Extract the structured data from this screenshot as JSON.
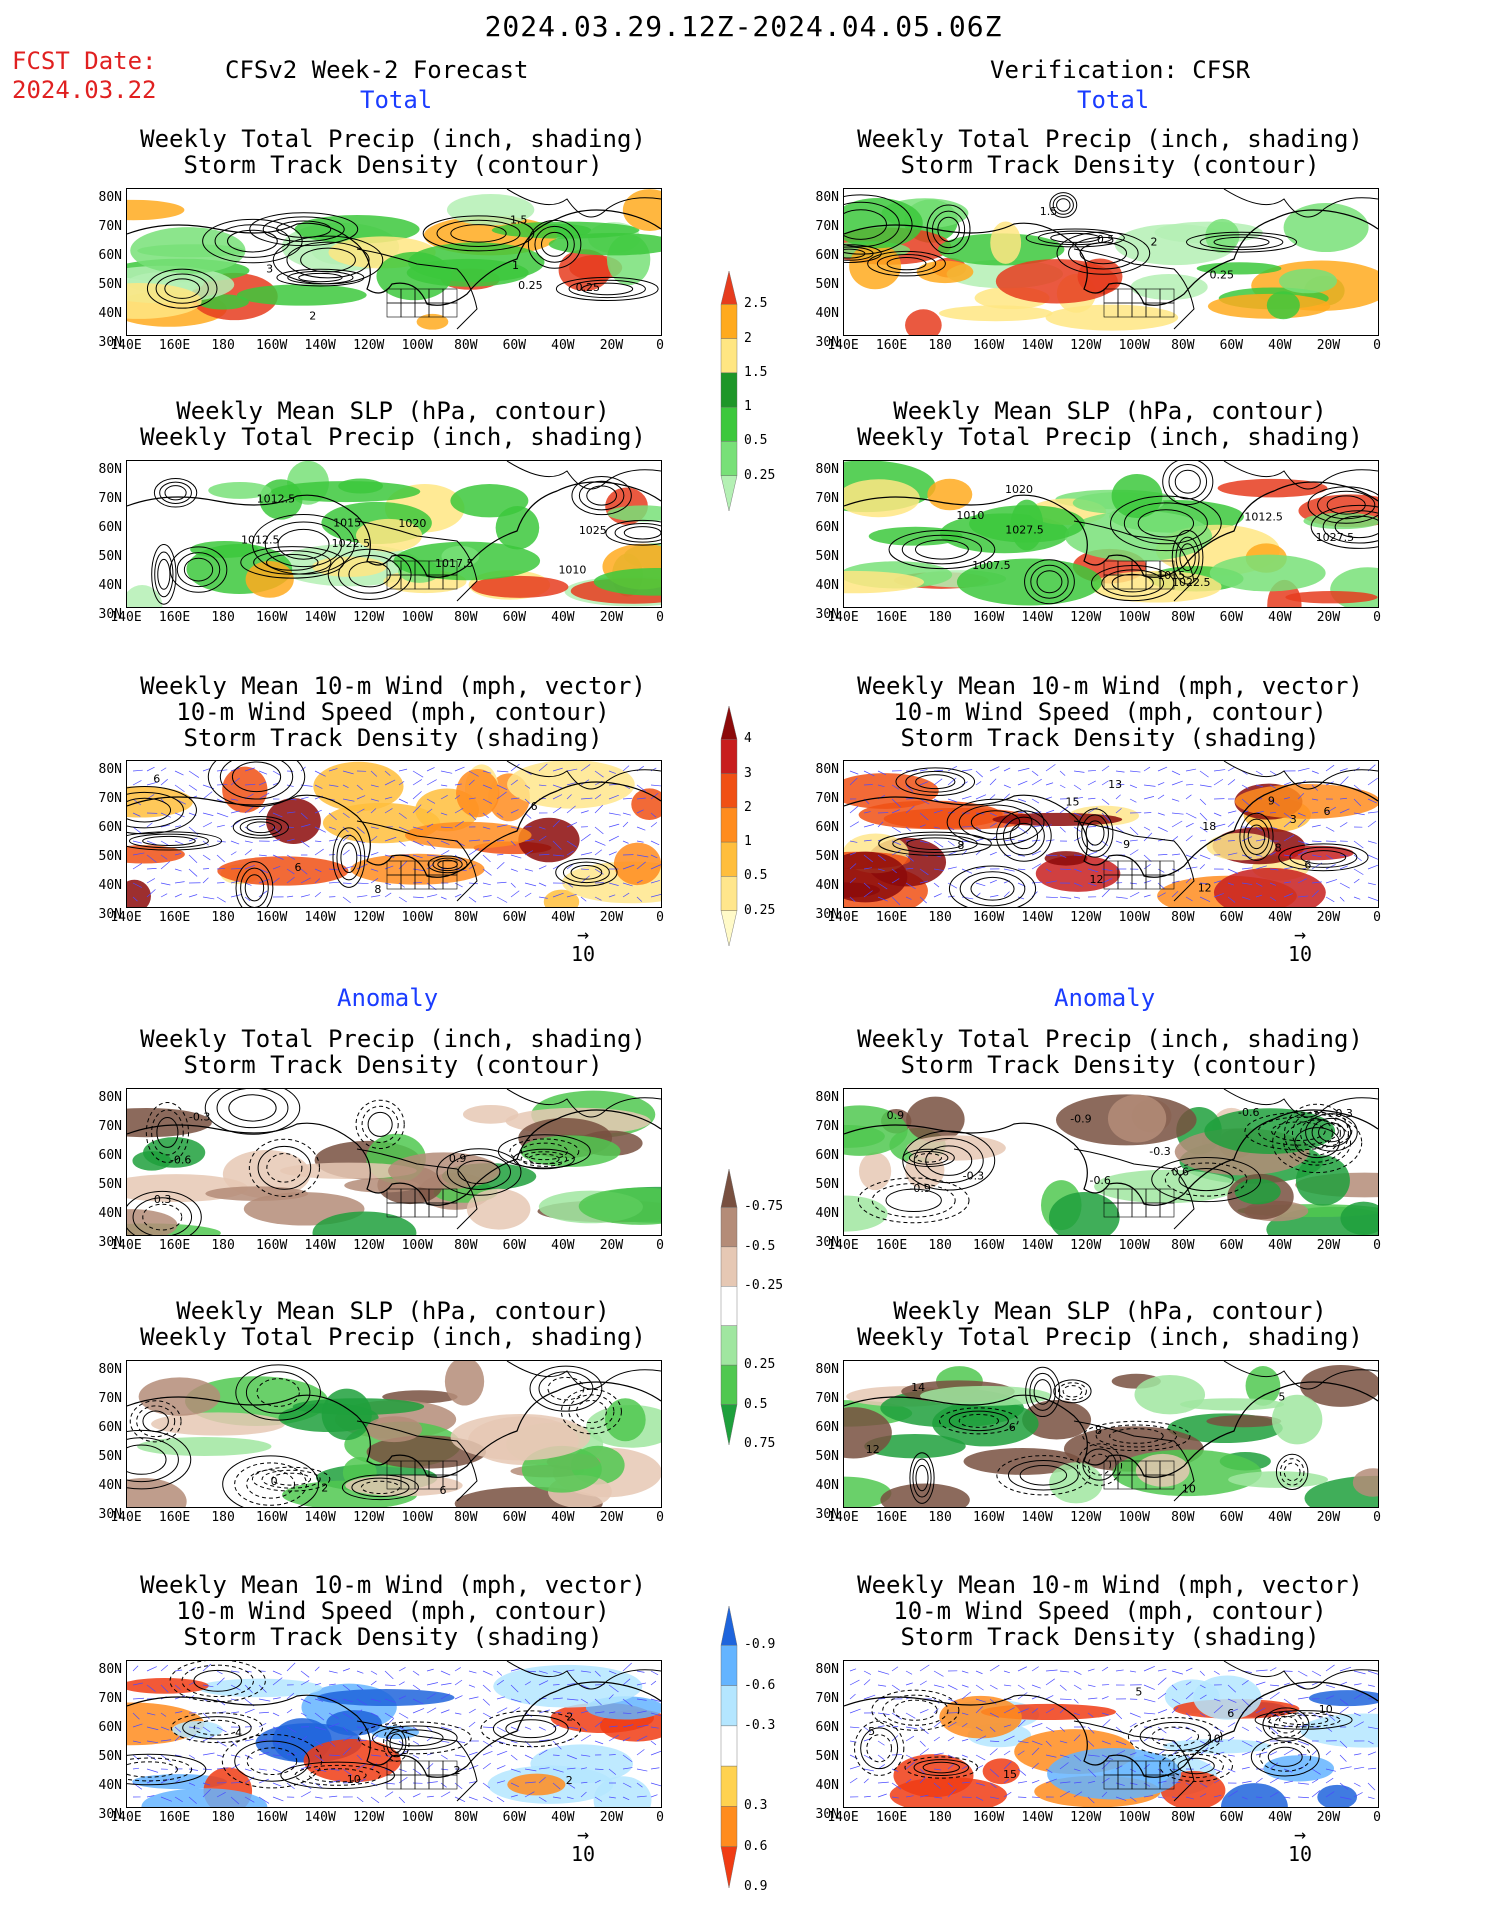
{
  "header": {
    "date_range": "2024.03.29.12Z-2024.04.05.06Z",
    "fcst_label": "FCST Date:",
    "fcst_date": "2024.03.22",
    "left_heading": "CFSv2 Week-2 Forecast",
    "right_heading": "Verification: CFSR",
    "total_label": "Total",
    "anomaly_label": "Anomaly"
  },
  "panel_titles": {
    "precip_storm": [
      "Weekly Total Precip (inch, shading)",
      "Storm Track Density (contour)"
    ],
    "slp_precip": [
      "Weekly Mean SLP (hPa, contour)",
      "Weekly Total Precip (inch, shading)"
    ],
    "wind_storm": [
      "Weekly Mean 10-m Wind (mph, vector)",
      "10-m Wind Speed (mph, contour)",
      "Storm Track Density (shading)"
    ]
  },
  "axes": {
    "lat_labels": [
      "80N",
      "70N",
      "60N",
      "50N",
      "40N",
      "30N"
    ],
    "lon_labels": [
      "140E",
      "160E",
      "180",
      "160W",
      "140W",
      "120W",
      "100W",
      "80W",
      "60W",
      "40W",
      "20W",
      "0"
    ]
  },
  "vector_ref": "10",
  "colorbars": {
    "total_precip": {
      "labels": [
        "0.25",
        "0.5",
        "1",
        "1.5",
        "2",
        "2.5"
      ],
      "colors": [
        "#b4f0b4",
        "#78e078",
        "#3cc83c",
        "#1e9628",
        "#ffe682",
        "#ffaa1e",
        "#e63c1e"
      ]
    },
    "total_storm": {
      "labels": [
        "0.25",
        "0.5",
        "1",
        "2",
        "3",
        "4"
      ],
      "colors": [
        "#fffac8",
        "#ffe68c",
        "#ffbe3c",
        "#ff8c1e",
        "#f05014",
        "#c81e1e",
        "#8c0a0a"
      ]
    },
    "anom_precip": {
      "labels": [
        "0.75",
        "0.5",
        "0.25",
        "-0.25",
        "-0.5",
        "-0.75"
      ],
      "colors": [
        "#1ea03c",
        "#50c850",
        "#a0e6a0",
        "#ffffff",
        "#e6c8b4",
        "#b48c78",
        "#785040"
      ]
    },
    "anom_storm": {
      "labels": [
        "0.9",
        "0.6",
        "0.3",
        "-0.3",
        "-0.6",
        "-0.9"
      ],
      "colors": [
        "#f03c14",
        "#ff8c1e",
        "#ffd250",
        "#ffffff",
        "#b4e6ff",
        "#64b4ff",
        "#1e64dc"
      ]
    }
  },
  "map_annotations": {
    "p1": [
      "3",
      "2",
      "1.5",
      "0.25",
      "1",
      "0.25"
    ],
    "p2": [
      "1020",
      "1025",
      "1022.5",
      "1017.5",
      "1015",
      "1010",
      "1012.5",
      "1012.5"
    ],
    "p3": [
      "6",
      "8",
      "6",
      "6"
    ],
    "p4": [
      "-0.3",
      "-0.6",
      "0.9",
      "0.3"
    ],
    "p5": [
      "2",
      "6",
      "0"
    ],
    "p6": [
      "2",
      "4",
      "2",
      "10",
      "2"
    ],
    "q1": [
      "1.5",
      "0.25",
      "2",
      "0.5"
    ],
    "q2": [
      "1022.5",
      "1020",
      "1007.5",
      "1010",
      "1012.5",
      "1015",
      "1027.5",
      "1027.5"
    ],
    "q3": [
      "6",
      "8",
      "9",
      "3",
      "15",
      "12",
      "6",
      "8",
      "9",
      "12",
      "13",
      "18"
    ],
    "q4": [
      "-0.3",
      "-0.9",
      "-0.6",
      "-0.3",
      "0.9",
      "-0.6",
      "-0.3",
      "-0.9",
      "0.6"
    ],
    "q5": [
      "8",
      "12",
      "14",
      "6",
      "10",
      "5"
    ],
    "q6": [
      "6",
      "5",
      "10",
      "5",
      "15",
      "10"
    ]
  }
}
